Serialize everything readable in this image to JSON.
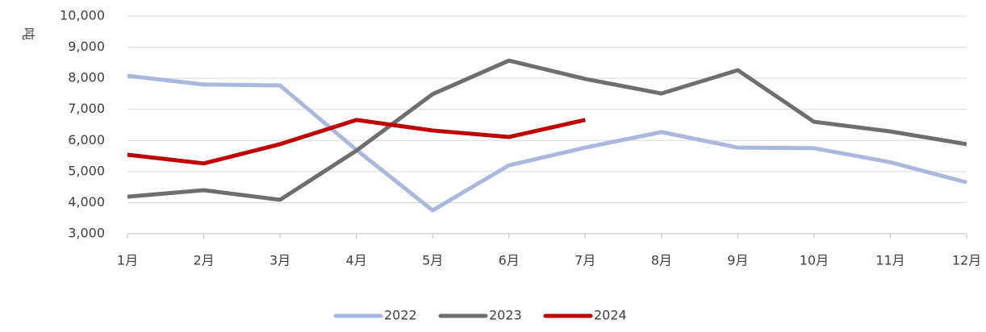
{
  "chart_data": {
    "type": "line",
    "y_label": "吨",
    "categories": [
      "1月",
      "2月",
      "3月",
      "4月",
      "5月",
      "6月",
      "7月",
      "8月",
      "9月",
      "10月",
      "11月",
      "12月"
    ],
    "series": [
      {
        "name": "2022",
        "color": "#a9b9de",
        "values": [
          8080,
          7800,
          7770,
          5700,
          3750,
          5200,
          5770,
          6270,
          5770,
          5750,
          5300,
          4650
        ]
      },
      {
        "name": "2023",
        "color": "#6e6e6e",
        "values": [
          4190,
          4400,
          4090,
          5670,
          7490,
          8570,
          7980,
          7510,
          8260,
          6600,
          6290,
          5880
        ]
      },
      {
        "name": "2024",
        "color": "#c00000",
        "values": [
          5540,
          5260,
          5880,
          6660,
          6320,
          6110,
          6660,
          null,
          null,
          null,
          null,
          null
        ]
      }
    ],
    "ylim": [
      3000,
      10000
    ],
    "yticks": [
      {
        "value": 3000,
        "label": "3,000"
      },
      {
        "value": 4000,
        "label": "4,000"
      },
      {
        "value": 5000,
        "label": "5,000"
      },
      {
        "value": 6000,
        "label": "6,000"
      },
      {
        "value": 7000,
        "label": "7,000"
      },
      {
        "value": 8000,
        "label": "8,000"
      },
      {
        "value": 9000,
        "label": "9,000"
      },
      {
        "value": 10000,
        "label": "10,000"
      }
    ],
    "grid": true,
    "legend": "bottom"
  }
}
